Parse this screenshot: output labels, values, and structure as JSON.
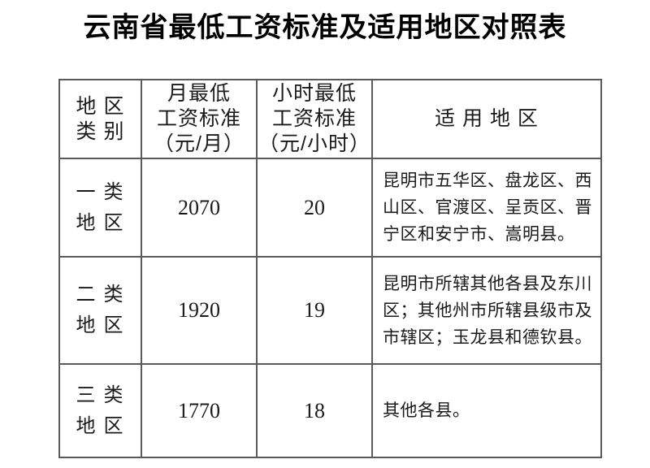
{
  "title": "云南省最低工资标准及适用地区对照表",
  "colors": {
    "border": "#5a5a5a",
    "text": "#1a1a1a",
    "background": "#ffffff"
  },
  "table": {
    "headers": [
      {
        "id": "region-category",
        "lines": [
          "地 区",
          "类 别"
        ]
      },
      {
        "id": "monthly-minimum-wage",
        "lines": [
          "月最低",
          "工资标准",
          "（元/月）"
        ]
      },
      {
        "id": "hourly-minimum-wage",
        "lines": [
          "小时最低",
          "工资标准",
          "（元/小时）"
        ]
      },
      {
        "id": "applicable-regions",
        "lines": [
          "适 用 地 区"
        ]
      }
    ],
    "rows": [
      {
        "category": [
          "一 类",
          "地 区"
        ],
        "monthly": "2070",
        "hourly": "20",
        "regions": "昆明市五华区、盘龙区、西山区、官渡区、呈贡区、晋宁区和安宁市、嵩明县。"
      },
      {
        "category": [
          "二 类",
          "地 区"
        ],
        "monthly": "1920",
        "hourly": "19",
        "regions": "昆明市所辖其他各县及东川区；其他州市所辖县级市及市辖区；玉龙县和德钦县。"
      },
      {
        "category": [
          "三 类",
          "地 区"
        ],
        "monthly": "1770",
        "hourly": "18",
        "regions": "其他各县。"
      }
    ]
  }
}
